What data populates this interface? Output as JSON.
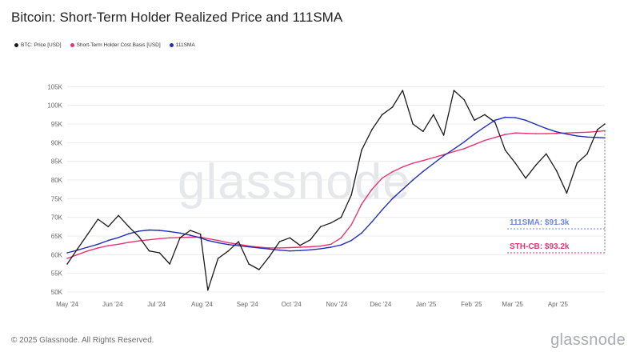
{
  "title": "Bitcoin: Short-Term Holder Realized Price and 111SMA",
  "legend": [
    {
      "label": "BTC: Price [USD]",
      "color": "#1a1a1a"
    },
    {
      "label": "Short-Term Holder Cost Basis [USD]",
      "color": "#e8336f"
    },
    {
      "label": "111SMA",
      "color": "#1f2fb8"
    }
  ],
  "watermark": "glassnode",
  "footer": {
    "copyright": "© 2025 Glassnode. All Rights Reserved.",
    "brand": "glassnode"
  },
  "annotations": {
    "sma": {
      "label": "111SMA: $91.3k",
      "color": "#6f86e8"
    },
    "stcb": {
      "label": "STH-CB: $93.2k",
      "color": "#e8336f"
    }
  },
  "chart_data": {
    "type": "line",
    "xlabel": "",
    "ylabel": "",
    "x_ticks": [
      "May '24",
      "Jun '24",
      "Jul '24",
      "Aug '24",
      "Sep '24",
      "Oct '24",
      "Nov '24",
      "Dec '24",
      "Jan '25",
      "Feb '25",
      "Mar '25",
      "Apr '25"
    ],
    "y_ticks": [
      "50K",
      "55K",
      "60K",
      "65K",
      "70K",
      "75K",
      "80K",
      "85K",
      "90K",
      "95K",
      "100K",
      "105K"
    ],
    "ylim": [
      50000,
      110000
    ],
    "grid": true,
    "x": [
      "2024-05-01",
      "2024-05-08",
      "2024-05-15",
      "2024-05-22",
      "2024-05-29",
      "2024-06-05",
      "2024-06-12",
      "2024-06-19",
      "2024-06-26",
      "2024-07-03",
      "2024-07-10",
      "2024-07-17",
      "2024-07-24",
      "2024-07-31",
      "2024-08-05",
      "2024-08-12",
      "2024-08-19",
      "2024-08-26",
      "2024-09-02",
      "2024-09-09",
      "2024-09-16",
      "2024-09-23",
      "2024-09-30",
      "2024-10-07",
      "2024-10-14",
      "2024-10-21",
      "2024-10-28",
      "2024-11-04",
      "2024-11-11",
      "2024-11-18",
      "2024-11-25",
      "2024-12-02",
      "2024-12-09",
      "2024-12-16",
      "2024-12-23",
      "2024-12-30",
      "2025-01-06",
      "2025-01-13",
      "2025-01-20",
      "2025-01-27",
      "2025-02-03",
      "2025-02-10",
      "2025-02-17",
      "2025-02-24",
      "2025-03-03",
      "2025-03-10",
      "2025-03-17",
      "2025-03-24",
      "2025-03-31",
      "2025-04-07",
      "2025-04-14",
      "2025-04-21",
      "2025-04-28",
      "2025-05-03"
    ],
    "series": [
      {
        "name": "BTC: Price [USD]",
        "color": "#1a1a1a",
        "values": [
          57500,
          61500,
          65500,
          69500,
          67500,
          70500,
          67500,
          64800,
          61000,
          60500,
          57500,
          64500,
          66500,
          65500,
          50500,
          59000,
          61000,
          63500,
          57500,
          56000,
          59500,
          63500,
          64500,
          62500,
          64000,
          67500,
          68500,
          70000,
          76000,
          88000,
          93500,
          97500,
          99500,
          104000,
          95000,
          93000,
          97500,
          92000,
          104000,
          101500,
          96000,
          97500,
          95500,
          88000,
          84500,
          80500,
          84000,
          87000,
          82500,
          76500,
          84500,
          87000,
          93500,
          95000
        ]
      },
      {
        "name": "Short-Term Holder Cost Basis [USD]",
        "color": "#e8336f",
        "values": [
          59000,
          60000,
          61000,
          61800,
          62400,
          62800,
          63300,
          63700,
          64000,
          64300,
          64500,
          64600,
          64700,
          64700,
          64300,
          63800,
          63200,
          62800,
          62300,
          62000,
          61800,
          61800,
          61900,
          62000,
          62100,
          62300,
          62800,
          64500,
          68000,
          73500,
          77500,
          80500,
          82200,
          83500,
          84500,
          85200,
          86000,
          86800,
          87600,
          88400,
          89500,
          90600,
          91400,
          92200,
          92600,
          92500,
          92400,
          92400,
          92500,
          92600,
          92700,
          92800,
          93000,
          93200
        ]
      },
      {
        "name": "111SMA",
        "color": "#1f2fb8",
        "values": [
          60500,
          61200,
          62000,
          62800,
          63800,
          64600,
          65600,
          66300,
          66600,
          66500,
          66200,
          65800,
          65200,
          64500,
          63800,
          63200,
          62700,
          62400,
          62100,
          61800,
          61500,
          61200,
          61000,
          61100,
          61300,
          61600,
          62000,
          62600,
          63800,
          65800,
          68800,
          72000,
          75000,
          77500,
          80000,
          82300,
          84400,
          86500,
          88300,
          90200,
          92300,
          94200,
          96000,
          96800,
          96700,
          96000,
          94900,
          93800,
          92900,
          92300,
          91800,
          91500,
          91400,
          91300
        ]
      }
    ]
  }
}
